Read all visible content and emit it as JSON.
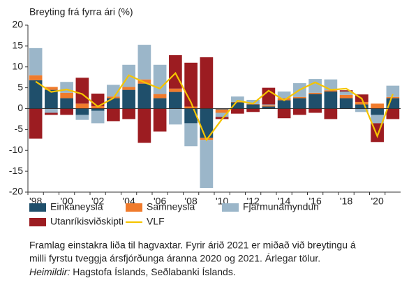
{
  "chart_data": {
    "type": "stacked_bar",
    "y_label": "Breyting frá fyrra ári (%)",
    "categories": [
      "'98",
      null,
      "'00",
      null,
      "'02",
      null,
      "'04",
      null,
      "'06",
      null,
      "'08",
      null,
      "'10",
      null,
      "'12",
      null,
      "'14",
      null,
      "'16",
      null,
      "'18",
      null,
      "'20",
      null
    ],
    "series": [
      {
        "name": "Einkaneysla",
        "color": "#1f4f6b",
        "values": [
          6.8,
          4.5,
          2.5,
          -1.5,
          -0.5,
          2.5,
          4.5,
          6,
          2.5,
          4,
          -3.5,
          -7,
          -0.2,
          1.5,
          1,
          0.5,
          2,
          2.5,
          3.5,
          4.1,
          2.5,
          1,
          -1.5,
          2.5
        ]
      },
      {
        "name": "Samneysla",
        "color": "#f07b2c",
        "values": [
          1.2,
          0.7,
          1.3,
          1.2,
          0.6,
          0.4,
          0.7,
          1,
          1,
          0.8,
          0.5,
          -0.5,
          -0.8,
          0.1,
          0.1,
          0.3,
          0.5,
          0.3,
          0.3,
          0.3,
          0.8,
          0.6,
          1.2,
          0.3
        ]
      },
      {
        "name": "Fjármunamyndun",
        "color": "#9bb6c9",
        "values": [
          6.5,
          -1,
          2.6,
          -1.2,
          -3,
          2.8,
          5.3,
          8.3,
          7,
          -3.8,
          -5.5,
          -11.5,
          -1,
          1.3,
          1,
          0.2,
          1.6,
          3.3,
          3.3,
          2.6,
          0.8,
          -0.8,
          -2,
          2.7
        ]
      },
      {
        "name": "Utanríkisviðskipti",
        "color": "#9c1c21",
        "values": [
          -7.2,
          -0.5,
          -1.5,
          6.2,
          3,
          -3,
          -2.5,
          -8.2,
          -5.5,
          8,
          10.5,
          12.3,
          -0.5,
          -1.2,
          -0.8,
          4,
          -2.3,
          -1.5,
          -1,
          -2.5,
          0.3,
          1.8,
          -4.5,
          -2.5
        ]
      },
      {
        "name": "VLF",
        "color": "#f5c400",
        "type": "line",
        "values": [
          6.5,
          4,
          4.6,
          3.5,
          0.5,
          2.5,
          8,
          6.3,
          4.8,
          8.5,
          1.5,
          -7.5,
          -2.5,
          1.9,
          1.2,
          4.3,
          2,
          4.5,
          6.3,
          4.5,
          4.8,
          2.4,
          -6.6,
          3.5
        ]
      }
    ],
    "ylim": [
      -20,
      20
    ],
    "yticks": [
      20,
      15,
      10,
      5,
      0,
      -5,
      -10,
      -15,
      -20
    ],
    "grid": false,
    "notes": [
      "Framlag einstakra liða til hagvaxtar. Fyrir árið 2021 er miðað við breytingu á",
      "milli fyrstu tveggja ársfjórðunga áranna 2020 og 2021. Árlegar tölur."
    ],
    "source_label": "Heimildir:",
    "source": "Hagstofa Íslands, Seðlabanki Íslands."
  }
}
